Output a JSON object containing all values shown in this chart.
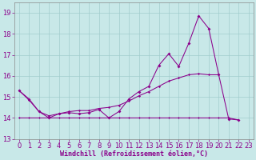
{
  "xlabel": "Windchill (Refroidissement éolien,°C)",
  "background_color": "#c8e8e8",
  "line_color": "#8b008b",
  "grid_color": "#a0cccc",
  "xlim": [
    -0.5,
    23.5
  ],
  "ylim": [
    13.0,
    19.5
  ],
  "yticks": [
    13,
    14,
    15,
    16,
    17,
    18,
    19
  ],
  "xticks": [
    0,
    1,
    2,
    3,
    4,
    5,
    6,
    7,
    8,
    9,
    10,
    11,
    12,
    13,
    14,
    15,
    16,
    17,
    18,
    19,
    20,
    21,
    22,
    23
  ],
  "line_spiky_x": [
    0,
    1,
    2,
    3,
    4,
    5,
    6,
    7,
    8,
    9,
    10,
    11,
    12,
    13,
    14,
    15,
    16,
    17,
    18,
    19,
    20,
    21,
    22
  ],
  "line_spiky_y": [
    15.3,
    14.9,
    14.3,
    14.0,
    14.2,
    14.25,
    14.2,
    14.25,
    14.4,
    14.0,
    14.3,
    14.9,
    15.25,
    15.5,
    16.5,
    17.05,
    16.45,
    17.55,
    18.85,
    18.25,
    16.05,
    13.95,
    13.9
  ],
  "line_smooth_x": [
    0,
    1,
    2,
    3,
    4,
    5,
    6,
    7,
    8,
    9,
    10,
    11,
    12,
    13,
    14,
    15,
    16,
    17,
    18,
    19,
    20
  ],
  "line_smooth_y": [
    15.3,
    14.85,
    14.3,
    14.1,
    14.2,
    14.3,
    14.35,
    14.35,
    14.45,
    14.5,
    14.6,
    14.8,
    15.05,
    15.25,
    15.5,
    15.75,
    15.9,
    16.05,
    16.1,
    16.05,
    16.05
  ],
  "line_flat_x": [
    0,
    1,
    2,
    3,
    4,
    5,
    6,
    7,
    8,
    9,
    10,
    11,
    12,
    13,
    14,
    15,
    16,
    17,
    18,
    19,
    20,
    21,
    22
  ],
  "line_flat_y": [
    14.0,
    14.0,
    14.0,
    14.0,
    14.0,
    14.0,
    14.0,
    14.0,
    14.0,
    14.0,
    14.0,
    14.0,
    14.0,
    14.0,
    14.0,
    14.0,
    14.0,
    14.0,
    14.0,
    14.0,
    14.0,
    14.0,
    13.9
  ],
  "tick_fontsize": 6.0,
  "xlabel_fontsize": 6.0,
  "marker_size": 2.0,
  "line_width": 0.75
}
